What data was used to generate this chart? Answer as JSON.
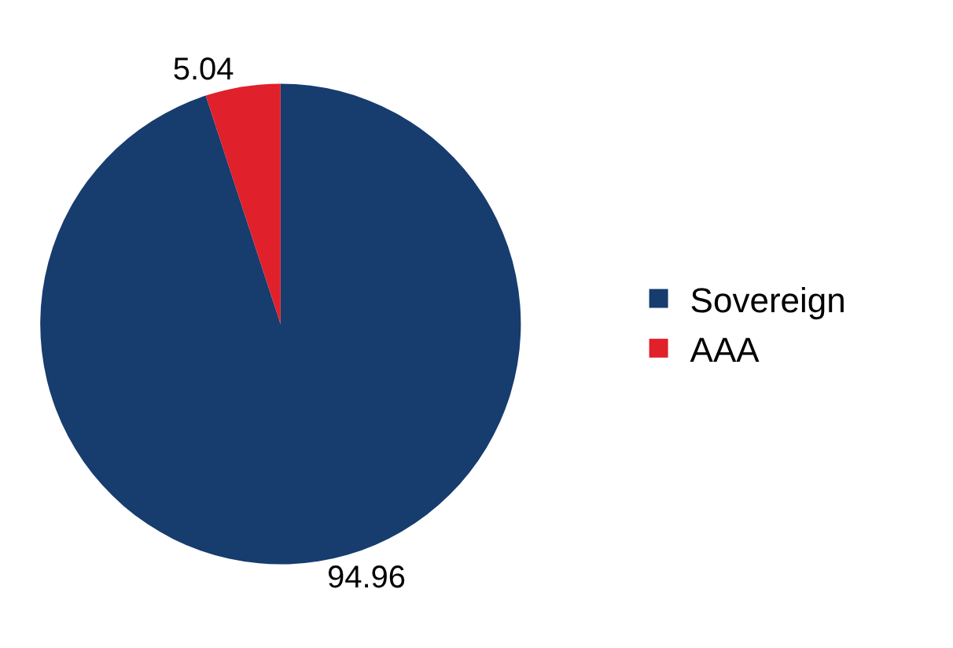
{
  "chart_data": {
    "type": "pie",
    "categories": [
      "Sovereign",
      "AAA"
    ],
    "values": [
      94.96,
      5.04
    ],
    "colors": [
      "#173c6e",
      "#e0202a"
    ],
    "data_labels": true,
    "legend": "right"
  }
}
